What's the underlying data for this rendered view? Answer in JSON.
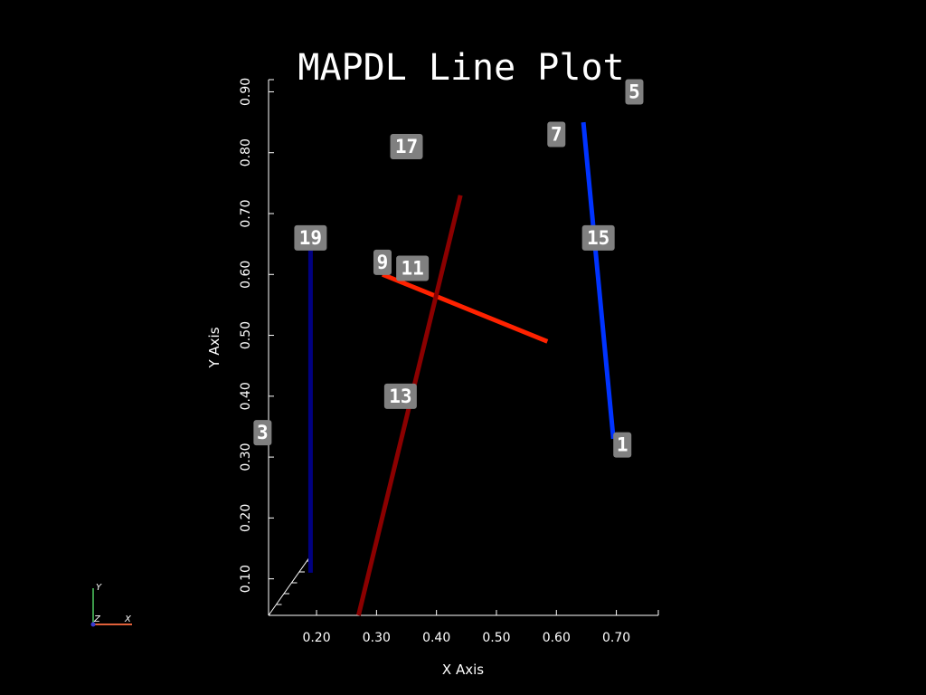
{
  "chart_data": {
    "type": "line",
    "title": "MAPDL Line Plot",
    "xlabel": "X Axis",
    "ylabel": "Y Axis",
    "xlim": [
      0.12,
      0.77
    ],
    "ylim": [
      0.04,
      0.92
    ],
    "xticks": [
      "0.20",
      "0.30",
      "0.40",
      "0.50",
      "0.60",
      "0.70"
    ],
    "yticks": [
      "0.10",
      "0.20",
      "0.30",
      "0.40",
      "0.50",
      "0.60",
      "0.70",
      "0.80",
      "0.90"
    ],
    "series": [
      {
        "color": "#0033ff",
        "x": [
          0.645,
          0.695
        ],
        "y": [
          0.85,
          0.33
        ]
      },
      {
        "color": "#ff2200",
        "x": [
          0.31,
          0.585
        ],
        "y": [
          0.6,
          0.49
        ]
      },
      {
        "color": "#8b0000",
        "x": [
          0.27,
          0.44
        ],
        "y": [
          0.04,
          0.73
        ]
      },
      {
        "color": "#000080",
        "x": [
          0.19,
          0.19
        ],
        "y": [
          0.11,
          0.66
        ]
      }
    ],
    "labels": [
      {
        "text": "1",
        "x": 0.71,
        "y": 0.32
      },
      {
        "text": "3",
        "x": 0.11,
        "y": 0.34
      },
      {
        "text": "5",
        "x": 0.73,
        "y": 0.9
      },
      {
        "text": "7",
        "x": 0.6,
        "y": 0.83
      },
      {
        "text": "9",
        "x": 0.31,
        "y": 0.62
      },
      {
        "text": "11",
        "x": 0.36,
        "y": 0.61
      },
      {
        "text": "13",
        "x": 0.34,
        "y": 0.4
      },
      {
        "text": "15",
        "x": 0.67,
        "y": 0.66
      },
      {
        "text": "17",
        "x": 0.35,
        "y": 0.81
      },
      {
        "text": "19",
        "x": 0.19,
        "y": 0.66
      }
    ],
    "grid": false,
    "legend": "none"
  },
  "orientation_triad": {
    "x_label": "X",
    "y_label": "Y",
    "z_label": "Z"
  }
}
